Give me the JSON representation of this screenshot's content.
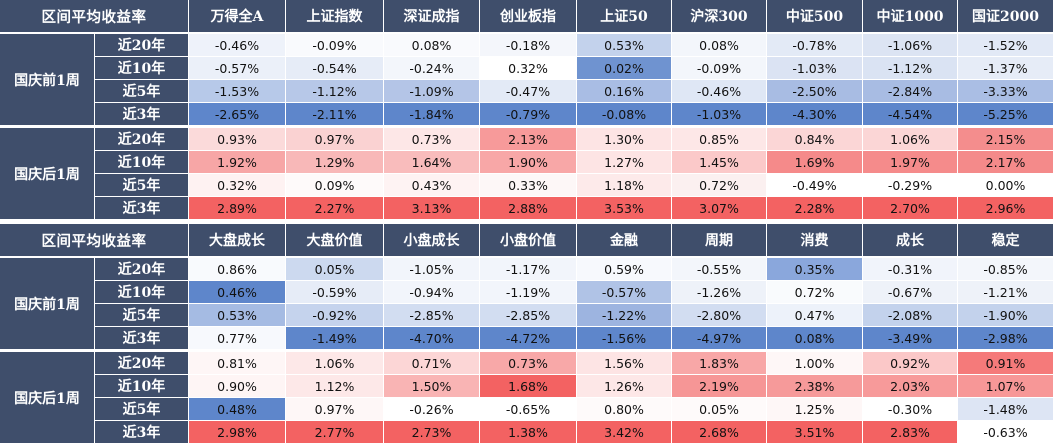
{
  "table1": {
    "corner": "区间平均收益率",
    "columns": [
      "万得全A",
      "上证指数",
      "深证成指",
      "创业板指",
      "上证50",
      "沪深300",
      "中证500",
      "中证1000",
      "国证2000"
    ],
    "groups": [
      {
        "label": "国庆前1周",
        "rows": [
          {
            "label": "近20年",
            "values": [
              "-0.46%",
              "-0.09%",
              "0.08%",
              "-0.18%",
              "0.53%",
              "0.08%",
              "-0.78%",
              "-1.06%",
              "-1.52%"
            ],
            "colors": [
              "#eef2fa",
              "#f9fafd",
              "#f9fafd",
              "#f4f6fb",
              "#c3d2ec",
              "#f3f6fb",
              "#e3eaf6",
              "#dce4f3",
              "#e2e9f6"
            ]
          },
          {
            "label": "近10年",
            "values": [
              "-0.57%",
              "-0.54%",
              "-0.24%",
              "0.32%",
              "0.02%",
              "-0.09%",
              "-1.03%",
              "-1.12%",
              "-1.37%"
            ],
            "colors": [
              "#ebf0f9",
              "#e6ecf7",
              "#f3f6fb",
              "#ffffff",
              "#6f93d0",
              "#f3f6fb",
              "#dbe3f3",
              "#dae3f3",
              "#e6ecf7"
            ]
          },
          {
            "label": "近5年",
            "values": [
              "-1.53%",
              "-1.12%",
              "-1.09%",
              "-0.47%",
              "0.16%",
              "-0.46%",
              "-2.50%",
              "-2.84%",
              "-3.33%"
            ],
            "colors": [
              "#b7c9e9",
              "#b7c8e8",
              "#b4c5e7",
              "#e3eaf6",
              "#a9bde4",
              "#dfe7f5",
              "#a8bce3",
              "#a8bce3",
              "#aabee4"
            ]
          },
          {
            "label": "近3年",
            "values": [
              "-2.65%",
              "-2.11%",
              "-1.84%",
              "-0.79%",
              "-0.08%",
              "-1.03%",
              "-4.30%",
              "-4.54%",
              "-5.25%"
            ],
            "colors": [
              "#5e86cb",
              "#5e86cb",
              "#5e86cb",
              "#5e86cb",
              "#5e86cb",
              "#5e86cb",
              "#5e86cb",
              "#5e86cb",
              "#5e86cb"
            ]
          }
        ]
      },
      {
        "label": "国庆后1周",
        "rows": [
          {
            "label": "近20年",
            "values": [
              "0.93%",
              "0.97%",
              "0.73%",
              "2.13%",
              "1.30%",
              "0.85%",
              "0.84%",
              "1.06%",
              "2.15%"
            ],
            "colors": [
              "#fbdada",
              "#fad2d2",
              "#fde7e7",
              "#f79a9a",
              "#fde4e4",
              "#fde7e7",
              "#fbd6d6",
              "#fbd6d6",
              "#f48d8d"
            ]
          },
          {
            "label": "近10年",
            "values": [
              "1.92%",
              "1.29%",
              "1.64%",
              "1.90%",
              "1.27%",
              "1.45%",
              "1.69%",
              "1.97%",
              "2.17%"
            ],
            "colors": [
              "#f7a6a6",
              "#f8b8b8",
              "#f9bcbc",
              "#f8a7a7",
              "#fde4e4",
              "#fbc9c9",
              "#f58a8a",
              "#f58b8b",
              "#f48a8a"
            ]
          },
          {
            "label": "近5年",
            "values": [
              "0.32%",
              "0.09%",
              "0.43%",
              "0.33%",
              "1.18%",
              "0.72%",
              "-0.49%",
              "-0.29%",
              "0.00%"
            ],
            "colors": [
              "#fef2f2",
              "#fefafa",
              "#fef3f3",
              "#fdf7f7",
              "#fdeaea",
              "#fbf0f0",
              "#ffffff",
              "#ffffff",
              "#ffffff"
            ]
          },
          {
            "label": "近3年",
            "values": [
              "2.89%",
              "2.27%",
              "3.13%",
              "2.88%",
              "3.53%",
              "3.07%",
              "2.28%",
              "2.70%",
              "2.96%"
            ],
            "colors": [
              "#f36262",
              "#f36262",
              "#f36262",
              "#f36262",
              "#f36262",
              "#f36262",
              "#f36262",
              "#f36262",
              "#f36262"
            ]
          }
        ]
      }
    ]
  },
  "table2": {
    "corner": "区间平均收益率",
    "columns": [
      "大盘成长",
      "大盘价值",
      "小盘成长",
      "小盘价值",
      "金融",
      "周期",
      "消费",
      "成长",
      "稳定"
    ],
    "groups": [
      {
        "label": "国庆前1周",
        "rows": [
          {
            "label": "近20年",
            "values": [
              "0.86%",
              "0.05%",
              "-1.05%",
              "-1.17%",
              "0.59%",
              "-0.55%",
              "0.35%",
              "-0.31%",
              "-0.85%"
            ],
            "colors": [
              "#f8fafd",
              "#ccd9ef",
              "#f2f5fb",
              "#f2f5fb",
              "#f7f9fd",
              "#f3f6fb",
              "#8aa7dc",
              "#f1f4fb",
              "#f3f6fb"
            ]
          },
          {
            "label": "近10年",
            "values": [
              "0.46%",
              "-0.59%",
              "-0.94%",
              "-1.19%",
              "-0.57%",
              "-1.26%",
              "0.72%",
              "-0.67%",
              "-1.21%"
            ],
            "colors": [
              "#5e86cb",
              "#e6ecf7",
              "#f2f5fb",
              "#f2f5fb",
              "#b0c3e6",
              "#eef2f9",
              "#f9fbfd",
              "#eef2f9",
              "#eef2f9"
            ]
          },
          {
            "label": "近5年",
            "values": [
              "0.53%",
              "-0.92%",
              "-2.85%",
              "-2.85%",
              "-1.22%",
              "-2.80%",
              "0.47%",
              "-2.08%",
              "-1.90%"
            ],
            "colors": [
              "#a5bbe3",
              "#c5d3ed",
              "#d2ddf1",
              "#d2ddf1",
              "#9db4e0",
              "#d2ddf1",
              "#edf2fa",
              "#c3d2ec",
              "#c3d2ec"
            ]
          },
          {
            "label": "近3年",
            "values": [
              "0.77%",
              "-1.49%",
              "-4.70%",
              "-4.72%",
              "-1.56%",
              "-4.97%",
              "0.08%",
              "-3.49%",
              "-2.98%"
            ],
            "colors": [
              "#f7f9fd",
              "#5e86cb",
              "#5e86cb",
              "#5e86cb",
              "#5e86cb",
              "#5e86cb",
              "#5e86cb",
              "#5e86cb",
              "#5e86cb"
            ]
          }
        ]
      },
      {
        "label": "国庆后1周",
        "rows": [
          {
            "label": "近20年",
            "values": [
              "0.81%",
              "1.06%",
              "0.71%",
              "0.73%",
              "1.56%",
              "1.83%",
              "1.00%",
              "0.92%",
              "0.91%"
            ],
            "colors": [
              "#fef6f6",
              "#fde8e8",
              "#fcd6d6",
              "#f8a8a8",
              "#fde4e4",
              "#f8a7a7",
              "#fef7f7",
              "#fbc8c8",
              "#f57a7a"
            ]
          },
          {
            "label": "近10年",
            "values": [
              "0.90%",
              "1.12%",
              "1.50%",
              "1.68%",
              "1.26%",
              "2.19%",
              "2.38%",
              "2.03%",
              "1.07%"
            ],
            "colors": [
              "#fef5f5",
              "#fde8e8",
              "#f9b4b4",
              "#f36262",
              "#fde7e7",
              "#f69696",
              "#f69a9a",
              "#f79a9a",
              "#f79797"
            ]
          },
          {
            "label": "近5年",
            "values": [
              "0.48%",
              "0.97%",
              "-0.26%",
              "-0.65%",
              "0.80%",
              "0.05%",
              "1.25%",
              "-0.30%",
              "-1.48%"
            ],
            "colors": [
              "#5e86cb",
              "#fef7f7",
              "#ffffff",
              "#ffffff",
              "#fefafa",
              "#fefafa",
              "#fef7f7",
              "#ffffff",
              "#dde5f4"
            ]
          },
          {
            "label": "近3年",
            "values": [
              "2.98%",
              "2.77%",
              "2.73%",
              "1.38%",
              "3.42%",
              "2.68%",
              "3.51%",
              "2.83%",
              "-0.63%"
            ],
            "colors": [
              "#f36262",
              "#f36262",
              "#f36262",
              "#f36262",
              "#f36262",
              "#f36262",
              "#f36262",
              "#f36262",
              "#ffffff"
            ]
          }
        ]
      }
    ]
  }
}
